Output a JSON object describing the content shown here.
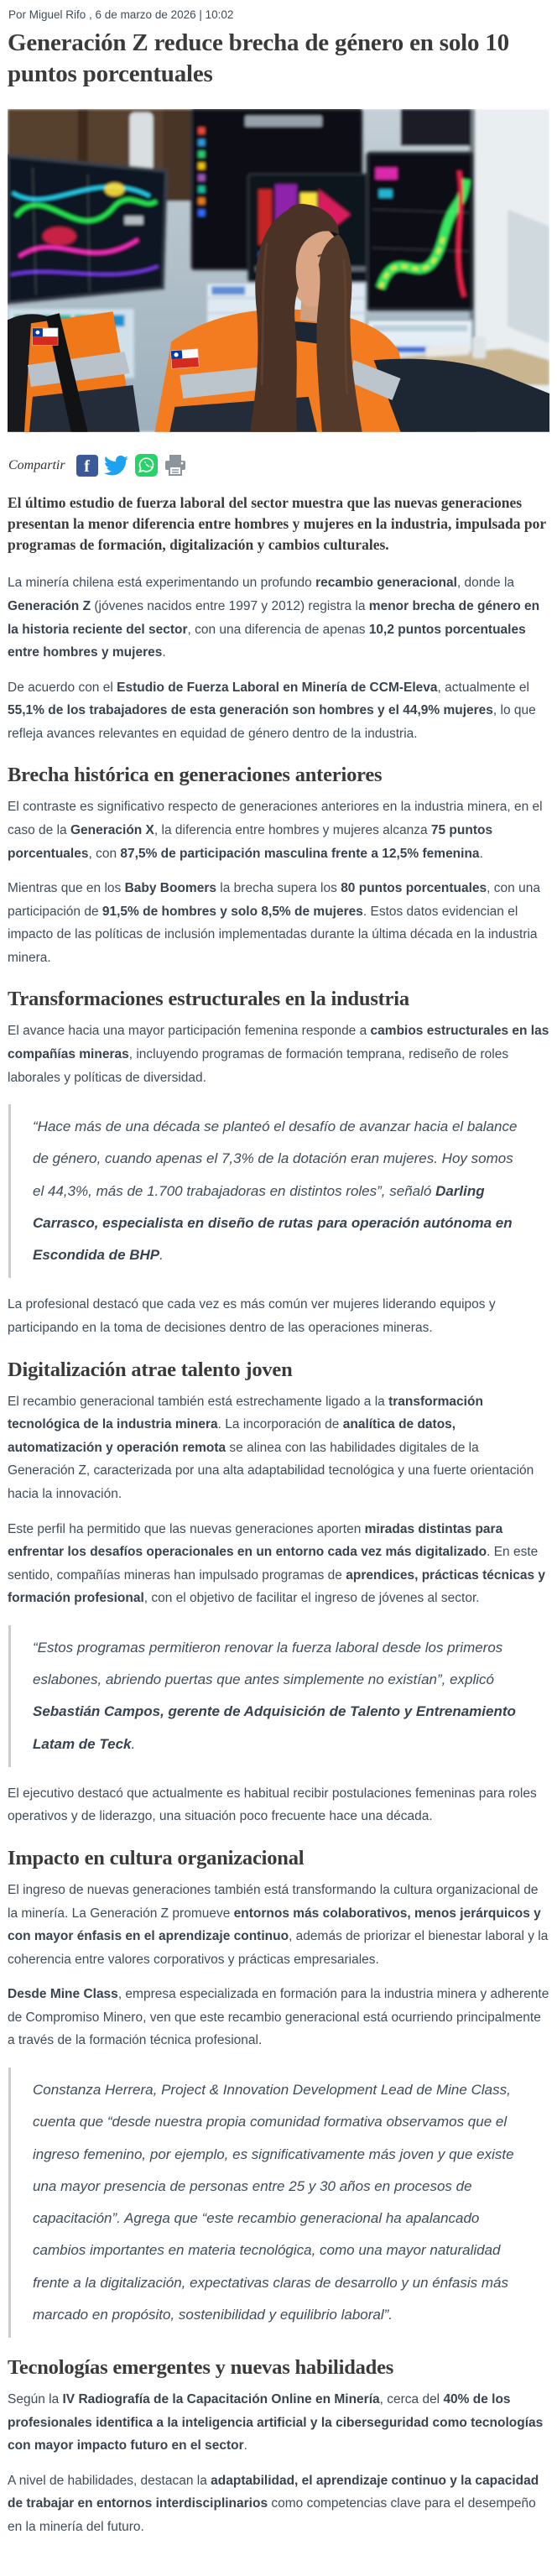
{
  "page": {
    "byline": "Por Miguel Rifo , 6 de marzo de 2026 | 10:02",
    "title": "Generación Z reduce brecha de género en solo 10 puntos porcentuales"
  },
  "share": {
    "label": "Compartir",
    "facebook_letter": "f",
    "icons": [
      "facebook-icon",
      "twitter-icon",
      "whatsapp-icon",
      "print-icon"
    ]
  },
  "hero_image": {
    "description": "Mujer joven de cabello largo castaño con chaqueta reflectante naranja y parche de la bandera de Chile, trabajando frente a monitores con mapas mineros de colores en una sala de control"
  },
  "colors": {
    "body-text": "#3f4c59",
    "heading-text": "#3a3a3a",
    "quote-border": "#cccccc",
    "facebook": "#3b5998",
    "twitter": "#1da1f2",
    "whatsapp": "#25d366",
    "print": "#8a949d"
  },
  "article": {
    "lead": "El último estudio de fuerza laboral del sector muestra que las nuevas generaciones presentan la menor diferencia entre hombres y mujeres en la industria, impulsada por programas de formación, digitalización y cambios culturales.",
    "blocks": [
      {
        "type": "p",
        "segments": [
          {
            "t": "La minería chilena está experimentando un profundo ",
            "b": false
          },
          {
            "t": "recambio generacional",
            "b": true
          },
          {
            "t": ", donde la ",
            "b": false
          },
          {
            "t": "Generación Z",
            "b": true
          },
          {
            "t": " (jóvenes nacidos entre 1997 y 2012) registra la ",
            "b": false
          },
          {
            "t": "menor brecha de género en la historia reciente del sector",
            "b": true
          },
          {
            "t": ", con una diferencia de apenas ",
            "b": false
          },
          {
            "t": "10,2 puntos porcentuales entre hombres y mujeres",
            "b": true
          },
          {
            "t": ".",
            "b": false
          }
        ]
      },
      {
        "type": "p",
        "segments": [
          {
            "t": "De acuerdo con el ",
            "b": false
          },
          {
            "t": "Estudio de Fuerza Laboral en Minería de CCM-Eleva",
            "b": true
          },
          {
            "t": ", actualmente el ",
            "b": false
          },
          {
            "t": "55,1% de los trabajadores de esta generación son hombres y el 44,9% mujeres",
            "b": true
          },
          {
            "t": ", lo que refleja avances relevantes en equidad de género dentro de la industria.",
            "b": false
          }
        ]
      },
      {
        "type": "h2",
        "text": "Brecha histórica en generaciones anteriores"
      },
      {
        "type": "p",
        "segments": [
          {
            "t": "El contraste es significativo respecto de generaciones anteriores en la industria minera, en el caso de la ",
            "b": false
          },
          {
            "t": "Generación X",
            "b": true
          },
          {
            "t": ", la diferencia entre hombres y mujeres alcanza ",
            "b": false
          },
          {
            "t": "75 puntos porcentuales",
            "b": true
          },
          {
            "t": ", con ",
            "b": false
          },
          {
            "t": "87,5% de participación masculina frente a 12,5% femenina",
            "b": true
          },
          {
            "t": ".",
            "b": false
          }
        ]
      },
      {
        "type": "p",
        "segments": [
          {
            "t": "Mientras que en los ",
            "b": false
          },
          {
            "t": "Baby Boomers",
            "b": true
          },
          {
            "t": " la brecha supera los ",
            "b": false
          },
          {
            "t": "80 puntos porcentuales",
            "b": true
          },
          {
            "t": ", con una participación de ",
            "b": false
          },
          {
            "t": "91,5% de hombres y solo 8,5% de mujeres",
            "b": true
          },
          {
            "t": ". Estos datos evidencian el impacto de las políticas de inclusión implementadas durante la última década en la industria minera.",
            "b": false
          }
        ]
      },
      {
        "type": "h2",
        "text": "Transformaciones estructurales en la industria"
      },
      {
        "type": "p",
        "segments": [
          {
            "t": "El avance hacia una mayor participación femenina responde a ",
            "b": false
          },
          {
            "t": "cambios estructurales en las compañías mineras",
            "b": true
          },
          {
            "t": ", incluyendo programas de formación temprana, rediseño de roles laborales y políticas de diversidad.",
            "b": false
          }
        ]
      },
      {
        "type": "quote",
        "segments": [
          {
            "t": "“Hace más de una década se planteó el desafío de avanzar hacia el balance de género, cuando apenas el 7,3% de la dotación eran mujeres. Hoy somos el 44,3%, más de 1.700 trabajadoras en distintos roles”, señaló ",
            "b": false
          },
          {
            "t": "Darling Carrasco, especialista en diseño de rutas para operación autónoma en Escondida de BHP",
            "b": true
          },
          {
            "t": ".",
            "b": false
          }
        ]
      },
      {
        "type": "p",
        "segments": [
          {
            "t": "La profesional destacó que cada vez es más común ver mujeres liderando equipos y participando en la toma de decisiones dentro de las operaciones mineras.",
            "b": false
          }
        ]
      },
      {
        "type": "h2",
        "text": "Digitalización atrae talento joven"
      },
      {
        "type": "p",
        "segments": [
          {
            "t": "El recambio generacional también está estrechamente ligado a la ",
            "b": false
          },
          {
            "t": "transformación tecnológica de la industria minera",
            "b": true
          },
          {
            "t": ". La incorporación de ",
            "b": false
          },
          {
            "t": "analítica de datos, automatización y operación remota",
            "b": true
          },
          {
            "t": " se alinea con las habilidades digitales de la Generación Z, caracterizada por una alta adaptabilidad tecnológica y una fuerte orientación hacia la innovación.",
            "b": false
          }
        ]
      },
      {
        "type": "p",
        "segments": [
          {
            "t": "Este perfil ha permitido que las nuevas generaciones aporten ",
            "b": false
          },
          {
            "t": "miradas distintas para enfrentar los desafíos operacionales en un entorno cada vez más digitalizado",
            "b": true
          },
          {
            "t": ". En este sentido, compañías mineras han impulsado programas de ",
            "b": false
          },
          {
            "t": "aprendices, prácticas técnicas y formación profesional",
            "b": true
          },
          {
            "t": ", con el objetivo de facilitar el ingreso de jóvenes al sector.",
            "b": false
          }
        ]
      },
      {
        "type": "quote",
        "segments": [
          {
            "t": "“Estos programas permitieron renovar la fuerza laboral desde los primeros eslabones, abriendo puertas que antes simplemente no existían”, explicó ",
            "b": false
          },
          {
            "t": "Sebastián Campos, gerente de Adquisición de Talento y Entrenamiento Latam de Teck",
            "b": true
          },
          {
            "t": ".",
            "b": false
          }
        ]
      },
      {
        "type": "p",
        "segments": [
          {
            "t": "El ejecutivo destacó que actualmente es habitual recibir postulaciones femeninas para roles operativos y de liderazgo, una situación poco frecuente hace una década.",
            "b": false
          }
        ]
      },
      {
        "type": "h2",
        "text": "Impacto en cultura organizacional"
      },
      {
        "type": "p",
        "segments": [
          {
            "t": "El ingreso de nuevas generaciones también está transformando la cultura organizacional de la minería. La Generación Z promueve ",
            "b": false
          },
          {
            "t": "entornos más colaborativos, menos jerárquicos y con mayor énfasis en el aprendizaje continuo",
            "b": true
          },
          {
            "t": ", además de priorizar el bienestar laboral y la coherencia entre valores corporativos y prácticas empresariales.",
            "b": false
          }
        ]
      },
      {
        "type": "p",
        "segments": [
          {
            "t": "Desde Mine Class",
            "b": true
          },
          {
            "t": ", empresa especializada en formación para la industria minera y adherente de Compromiso Minero, ven que este recambio generacional está ocurriendo principalmente a través de la formación técnica profesional.",
            "b": false
          }
        ]
      },
      {
        "type": "quote",
        "segments": [
          {
            "t": "Constanza Herrera, Project & Innovation Development Lead de Mine Class, cuenta que “desde nuestra propia comunidad formativa observamos que el ingreso femenino, por ejemplo, es significativamente más joven y que existe una mayor presencia de personas entre 25 y 30 años en procesos de capacitación”. Agrega que “este recambio generacional ha apalancado cambios importantes en materia tecnológica, como una mayor naturalidad frente a la digitalización, expectativas claras de desarrollo y un énfasis más marcado en propósito, sostenibilidad y equilibrio laboral”.",
            "b": false
          }
        ]
      },
      {
        "type": "h2",
        "text": "Tecnologías emergentes y nuevas habilidades"
      },
      {
        "type": "p",
        "segments": [
          {
            "t": "Según la ",
            "b": false
          },
          {
            "t": "IV Radiografía de la Capacitación Online en Minería",
            "b": true
          },
          {
            "t": ", cerca del ",
            "b": false
          },
          {
            "t": "40% de los profesionales identifica a la inteligencia artificial y la ciberseguridad como tecnologías con mayor impacto futuro en el sector",
            "b": true
          },
          {
            "t": ".",
            "b": false
          }
        ]
      },
      {
        "type": "p",
        "segments": [
          {
            "t": "A nivel de habilidades, destacan la ",
            "b": false
          },
          {
            "t": "adaptabilidad, el aprendizaje continuo y la capacidad de trabajar en entornos interdisciplinarios",
            "b": true
          },
          {
            "t": " como competencias clave para el desempeño en la minería del futuro.",
            "b": false
          }
        ]
      }
    ]
  }
}
